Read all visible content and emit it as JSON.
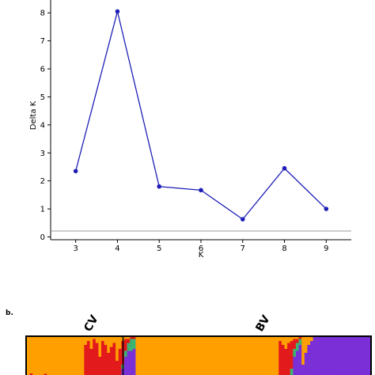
{
  "chart_data": [
    {
      "type": "line",
      "xlabel": "K",
      "ylabel": "Delta K",
      "x": [
        3,
        4,
        5,
        6,
        7,
        8,
        9
      ],
      "y": [
        2.35,
        8.05,
        1.8,
        1.67,
        0.63,
        2.45,
        1.0
      ],
      "xlim": [
        2.4,
        9.6
      ],
      "ylim": [
        -0.1,
        8.6
      ],
      "xticks": [
        "3",
        "4",
        "5",
        "6",
        "7",
        "8",
        "9"
      ],
      "yticks": [
        "0",
        "1",
        "2",
        "3",
        "4",
        "5",
        "6",
        "7",
        "8"
      ],
      "color": "#1f1fb8",
      "grid": false
    },
    {
      "type": "bar",
      "panel_label": "b.",
      "groups": [
        {
          "label": "CV",
          "start": 0.0,
          "end": 0.28
        },
        {
          "label": "BV",
          "start": 0.28,
          "end": 1.0
        }
      ],
      "cluster_colors": [
        "#ff9f00",
        "#e31a1c",
        "#3cb371",
        "#7b2fd6"
      ],
      "individuals": [
        [
          1.0,
          0,
          0,
          0
        ],
        [
          0.92,
          0.08,
          0,
          0
        ],
        [
          1.0,
          0,
          0,
          0
        ],
        [
          0.96,
          0.04,
          0,
          0
        ],
        [
          1.0,
          0,
          0,
          0
        ],
        [
          1.0,
          0,
          0,
          0
        ],
        [
          0.93,
          0.07,
          0,
          0
        ],
        [
          1.0,
          0,
          0,
          0
        ],
        [
          0.98,
          0.02,
          0,
          0
        ],
        [
          1.0,
          0,
          0,
          0
        ],
        [
          1.0,
          0,
          0,
          0
        ],
        [
          1.0,
          0,
          0,
          0
        ],
        [
          1.0,
          0,
          0,
          0
        ],
        [
          1.0,
          0,
          0,
          0
        ],
        [
          1.0,
          0,
          0,
          0
        ],
        [
          1.0,
          0,
          0,
          0
        ],
        [
          1.0,
          0,
          0,
          0
        ],
        [
          1.0,
          0,
          0,
          0
        ],
        [
          1.0,
          0,
          0,
          0
        ],
        [
          1.0,
          0,
          0,
          0
        ],
        [
          0.2,
          0.8,
          0,
          0
        ],
        [
          0.1,
          0.9,
          0,
          0
        ],
        [
          0.3,
          0.7,
          0,
          0
        ],
        [
          0.05,
          0.95,
          0,
          0
        ],
        [
          0.15,
          0.85,
          0,
          0
        ],
        [
          0.5,
          0.5,
          0,
          0
        ],
        [
          0.1,
          0.9,
          0,
          0
        ],
        [
          0.2,
          0.8,
          0,
          0
        ],
        [
          0.4,
          0.6,
          0,
          0
        ],
        [
          0.25,
          0.75,
          0,
          0
        ],
        [
          0.15,
          0.85,
          0,
          0
        ],
        [
          0.6,
          0.4,
          0,
          0
        ],
        [
          0.3,
          0.7,
          0,
          0
        ],
        [
          0.1,
          0.6,
          0.1,
          0.2
        ],
        [
          0.05,
          0.3,
          0.15,
          0.5
        ],
        [
          0.05,
          0.1,
          0.2,
          0.65
        ],
        [
          0,
          0.05,
          0.3,
          0.65
        ],
        [
          0,
          0.05,
          0.25,
          0.7
        ],
        [
          1.0,
          0,
          0,
          0
        ],
        [
          1.0,
          0,
          0,
          0
        ],
        [
          1.0,
          0,
          0,
          0
        ],
        [
          1.0,
          0,
          0,
          0
        ],
        [
          1.0,
          0,
          0,
          0
        ],
        [
          1.0,
          0,
          0,
          0
        ],
        [
          1.0,
          0,
          0,
          0
        ],
        [
          1.0,
          0,
          0,
          0
        ],
        [
          1.0,
          0,
          0,
          0
        ],
        [
          1.0,
          0,
          0,
          0
        ],
        [
          1.0,
          0,
          0,
          0
        ],
        [
          1.0,
          0,
          0,
          0
        ],
        [
          1.0,
          0,
          0,
          0
        ],
        [
          1.0,
          0,
          0,
          0
        ],
        [
          1.0,
          0,
          0,
          0
        ],
        [
          1.0,
          0,
          0,
          0
        ],
        [
          1.0,
          0,
          0,
          0
        ],
        [
          1.0,
          0,
          0,
          0
        ],
        [
          1.0,
          0,
          0,
          0
        ],
        [
          1.0,
          0,
          0,
          0
        ],
        [
          1.0,
          0,
          0,
          0
        ],
        [
          1.0,
          0,
          0,
          0
        ],
        [
          1.0,
          0,
          0,
          0
        ],
        [
          1.0,
          0,
          0,
          0
        ],
        [
          1.0,
          0,
          0,
          0
        ],
        [
          1.0,
          0,
          0,
          0
        ],
        [
          1.0,
          0,
          0,
          0
        ],
        [
          1.0,
          0,
          0,
          0
        ],
        [
          1.0,
          0,
          0,
          0
        ],
        [
          1.0,
          0,
          0,
          0
        ],
        [
          1.0,
          0,
          0,
          0
        ],
        [
          1.0,
          0,
          0,
          0
        ],
        [
          1.0,
          0,
          0,
          0
        ],
        [
          1.0,
          0,
          0,
          0
        ],
        [
          1.0,
          0,
          0,
          0
        ],
        [
          1.0,
          0,
          0,
          0
        ],
        [
          1.0,
          0,
          0,
          0
        ],
        [
          1.0,
          0,
          0,
          0
        ],
        [
          1.0,
          0,
          0,
          0
        ],
        [
          1.0,
          0,
          0,
          0
        ],
        [
          1.0,
          0,
          0,
          0
        ],
        [
          1.0,
          0,
          0,
          0
        ],
        [
          1.0,
          0,
          0,
          0
        ],
        [
          1.0,
          0,
          0,
          0
        ],
        [
          1.0,
          0,
          0,
          0
        ],
        [
          1.0,
          0,
          0,
          0
        ],
        [
          1.0,
          0,
          0,
          0
        ],
        [
          1.0,
          0,
          0,
          0
        ],
        [
          1.0,
          0,
          0,
          0
        ],
        [
          1.0,
          0,
          0,
          0
        ],
        [
          0.1,
          0.9,
          0,
          0
        ],
        [
          0.2,
          0.8,
          0,
          0
        ],
        [
          0.3,
          0.7,
          0,
          0
        ],
        [
          0.15,
          0.85,
          0,
          0
        ],
        [
          0.1,
          0.7,
          0.2,
          0
        ],
        [
          0.05,
          0.25,
          0.2,
          0.5
        ],
        [
          0.05,
          0.1,
          0.2,
          0.65
        ],
        [
          0,
          0.05,
          0.15,
          0.8
        ],
        [
          0.7,
          0,
          0,
          0.3
        ],
        [
          0.4,
          0,
          0,
          0.6
        ],
        [
          0.2,
          0,
          0,
          0.8
        ],
        [
          0.1,
          0,
          0,
          0.9
        ],
        [
          0,
          0,
          0,
          1.0
        ],
        [
          0,
          0,
          0,
          1.0
        ],
        [
          0,
          0,
          0,
          1.0
        ],
        [
          0,
          0,
          0,
          1.0
        ],
        [
          0,
          0,
          0,
          1.0
        ],
        [
          0,
          0,
          0,
          1.0
        ],
        [
          0,
          0,
          0,
          1.0
        ],
        [
          0,
          0,
          0,
          1.0
        ],
        [
          0,
          0,
          0,
          1.0
        ],
        [
          0,
          0,
          0,
          1.0
        ],
        [
          0,
          0,
          0,
          1.0
        ],
        [
          0,
          0,
          0,
          1.0
        ],
        [
          0,
          0,
          0,
          1.0
        ],
        [
          0,
          0,
          0,
          1.0
        ],
        [
          0,
          0,
          0,
          1.0
        ],
        [
          0,
          0,
          0,
          1.0
        ],
        [
          0,
          0,
          0,
          1.0
        ],
        [
          0,
          0,
          0,
          1.0
        ],
        [
          0,
          0,
          0,
          1.0
        ],
        [
          0,
          0,
          0,
          1.0
        ]
      ]
    }
  ]
}
